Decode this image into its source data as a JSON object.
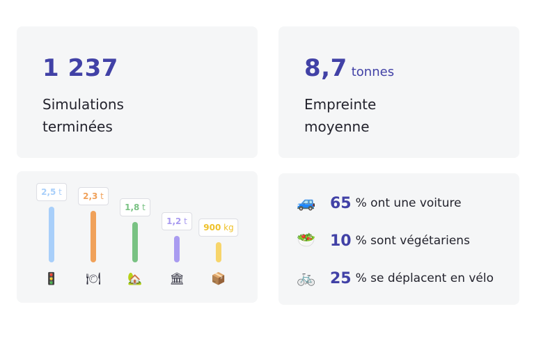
{
  "simulations": {
    "value": "1 237",
    "label_line1": "Simulations",
    "label_line2": "terminées"
  },
  "empreinte": {
    "value": "8,7",
    "unit": "tonnes",
    "label_line1": "Empreinte",
    "label_line2": "moyenne"
  },
  "categories": [
    {
      "icon": "traffic-light-icon",
      "glyph": "🚦",
      "value_num": "2,5",
      "value_unit": "t",
      "tonnes": 2.5,
      "color": "#a8cffa"
    },
    {
      "icon": "plate-cutlery-icon",
      "glyph": "🍽",
      "value_num": "2,3",
      "value_unit": "t",
      "tonnes": 2.3,
      "color": "#f0a15a"
    },
    {
      "icon": "house-icon",
      "glyph": "🏡",
      "value_num": "1,8",
      "value_unit": "t",
      "tonnes": 1.8,
      "color": "#79c283"
    },
    {
      "icon": "bank-icon",
      "glyph": "🏛",
      "value_num": "1,2",
      "value_unit": "t",
      "tonnes": 1.2,
      "color": "#a99bf0"
    },
    {
      "icon": "package-icon",
      "glyph": "📦",
      "value_num": "900",
      "value_unit": "kg",
      "tonnes": 0.9,
      "color": "#f7d56b"
    }
  ],
  "stats": [
    {
      "icon": "car-icon",
      "glyph": "🚙",
      "number": "65",
      "text": "% ont une voiture"
    },
    {
      "icon": "salad-icon",
      "glyph": "🥗",
      "number": "10",
      "text": "% sont végétariens"
    },
    {
      "icon": "bicycle-icon",
      "glyph": "🚲",
      "number": "25",
      "text": "% se déplacent en vélo"
    }
  ]
}
